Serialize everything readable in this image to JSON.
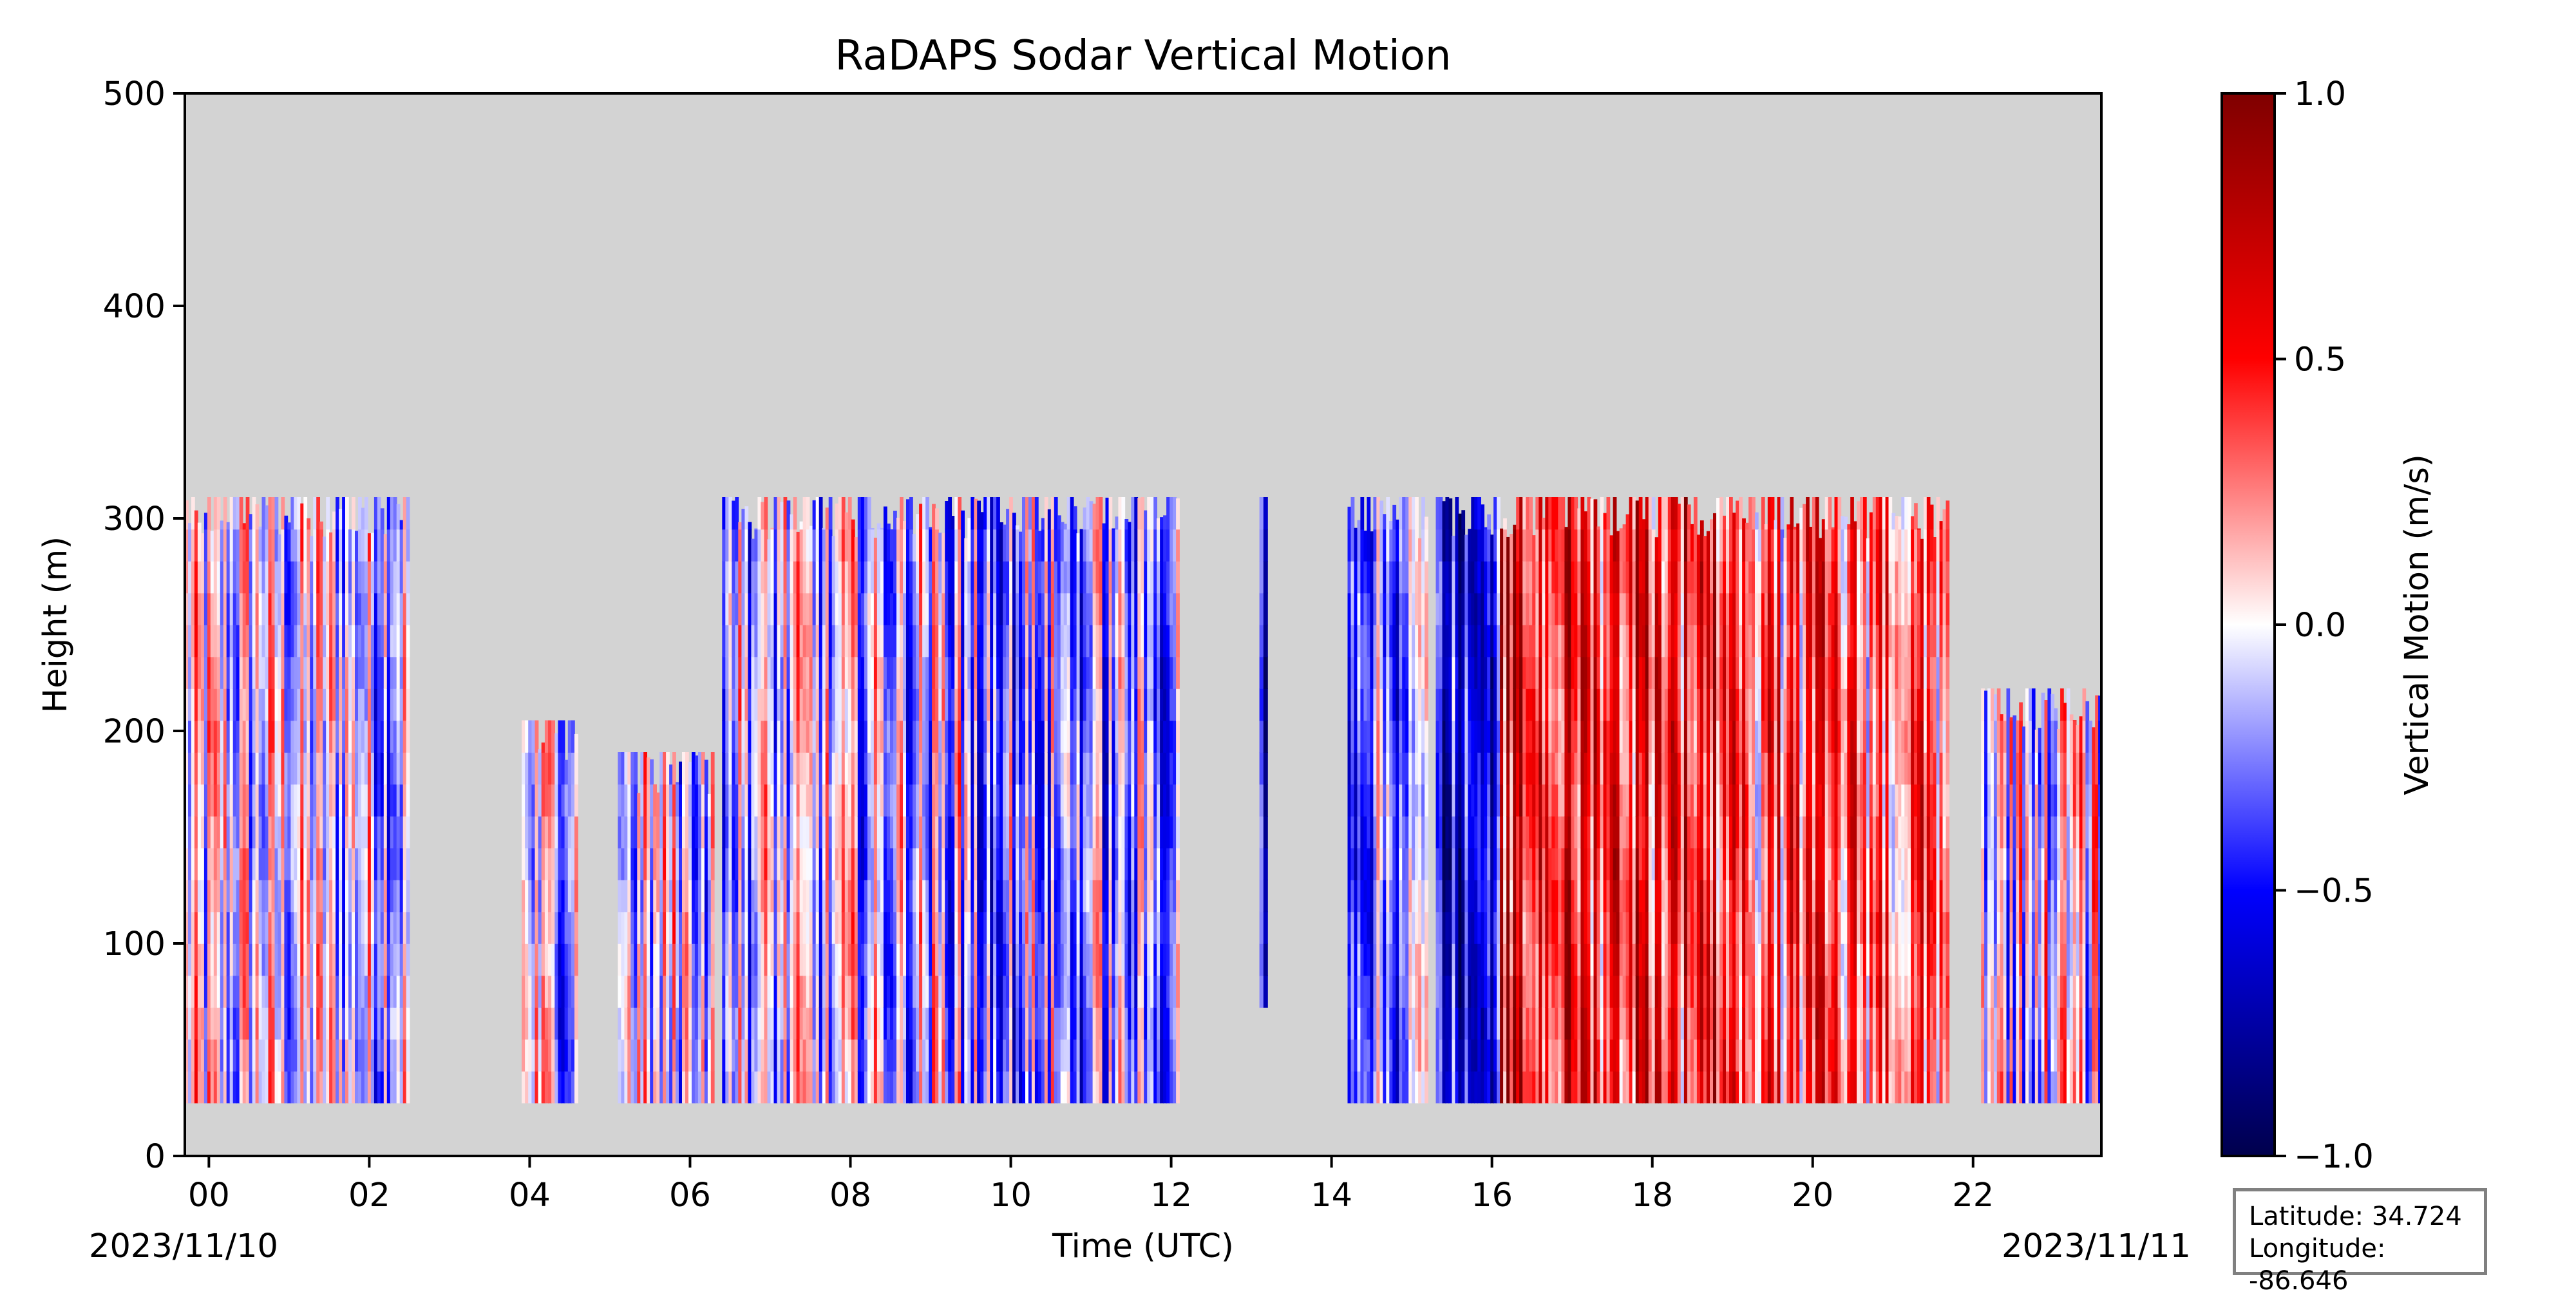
{
  "chart_data": {
    "type": "heatmap",
    "title": "RaDAPS Sodar Vertical Motion",
    "xlabel": "Time (UTC)",
    "ylabel": "Height (m)",
    "x_ticks": [
      "00",
      "02",
      "04",
      "06",
      "08",
      "10",
      "12",
      "14",
      "16",
      "18",
      "20",
      "22"
    ],
    "xlim": [
      -0.3,
      23.6
    ],
    "y_ticks": [
      0,
      100,
      200,
      300,
      400,
      500
    ],
    "ylim": [
      0,
      500
    ],
    "start_date": "2023/11/10",
    "end_date": "2023/11/11",
    "background_color": "#d3d3d3",
    "colormap": "seismic",
    "colorbar": {
      "label": "Vertical Motion (m/s)",
      "ticks": [
        "1.0",
        "0.5",
        "0.0",
        "−0.5",
        "−1.0"
      ],
      "range": [
        -1.0,
        1.0
      ],
      "colors": [
        "#00004c",
        "#0000ff",
        "#ffffff",
        "#ff0000",
        "#7f0000"
      ]
    },
    "data_segments": [
      {
        "t_start": -0.3,
        "t_end": 2.5,
        "z_bottom": 25,
        "z_top": 310,
        "mean_motion": -0.05
      },
      {
        "t_start": 3.9,
        "t_end": 4.6,
        "z_bottom": 25,
        "z_top": 205,
        "mean_motion": -0.05
      },
      {
        "t_start": 5.1,
        "t_end": 6.3,
        "z_bottom": 25,
        "z_top": 190,
        "mean_motion": -0.05
      },
      {
        "t_start": 6.4,
        "t_end": 9.5,
        "z_bottom": 25,
        "z_top": 310,
        "mean_motion": -0.1
      },
      {
        "t_start": 9.5,
        "t_end": 12.1,
        "z_bottom": 25,
        "z_top": 310,
        "mean_motion": -0.2
      },
      {
        "t_start": 13.1,
        "t_end": 13.2,
        "z_bottom": 70,
        "z_top": 310,
        "mean_motion": -0.6
      },
      {
        "t_start": 14.2,
        "t_end": 15.2,
        "z_bottom": 25,
        "z_top": 310,
        "mean_motion": -0.2
      },
      {
        "t_start": 15.3,
        "t_end": 16.1,
        "z_bottom": 25,
        "z_top": 310,
        "mean_motion": -0.6
      },
      {
        "t_start": 16.1,
        "t_end": 19.2,
        "z_bottom": 25,
        "z_top": 310,
        "mean_motion": 0.5
      },
      {
        "t_start": 19.2,
        "t_end": 21.7,
        "z_bottom": 25,
        "z_top": 310,
        "mean_motion": 0.3
      },
      {
        "t_start": 22.1,
        "t_end": 23.6,
        "z_bottom": 25,
        "z_top": 220,
        "mean_motion": 0.0
      }
    ]
  },
  "info": {
    "latitude": "Latitude: 34.724",
    "longitude": "Longitude: -86.646"
  }
}
